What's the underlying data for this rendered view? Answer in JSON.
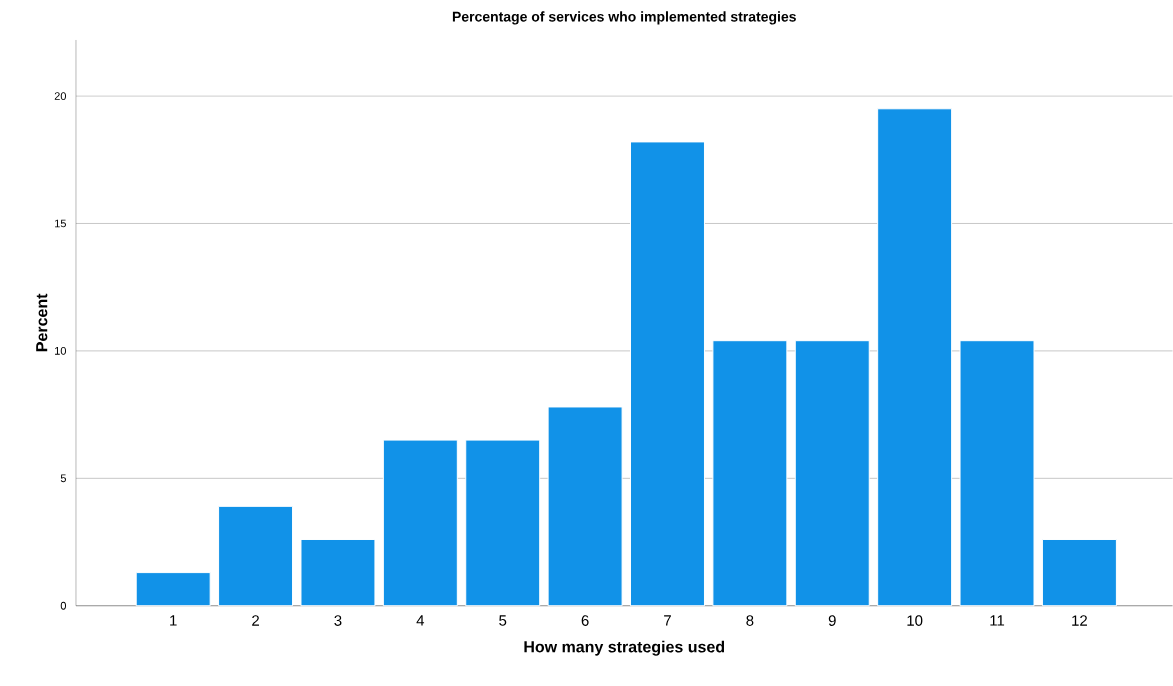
{
  "chart_data": {
    "type": "bar",
    "title": "Percentage of services who implemented strategies",
    "xlabel": "How many strategies used",
    "ylabel": "Percent",
    "categories": [
      "1",
      "2",
      "3",
      "4",
      "5",
      "6",
      "7",
      "8",
      "9",
      "10",
      "11",
      "12"
    ],
    "values": [
      1.3,
      3.9,
      2.6,
      6.5,
      6.5,
      7.8,
      18.2,
      10.4,
      10.4,
      19.5,
      10.4,
      2.6
    ],
    "color": "#1192e8",
    "ylim": [
      0,
      22.2
    ],
    "yticks": [
      0,
      5,
      10,
      15,
      20
    ],
    "grid": "y"
  }
}
